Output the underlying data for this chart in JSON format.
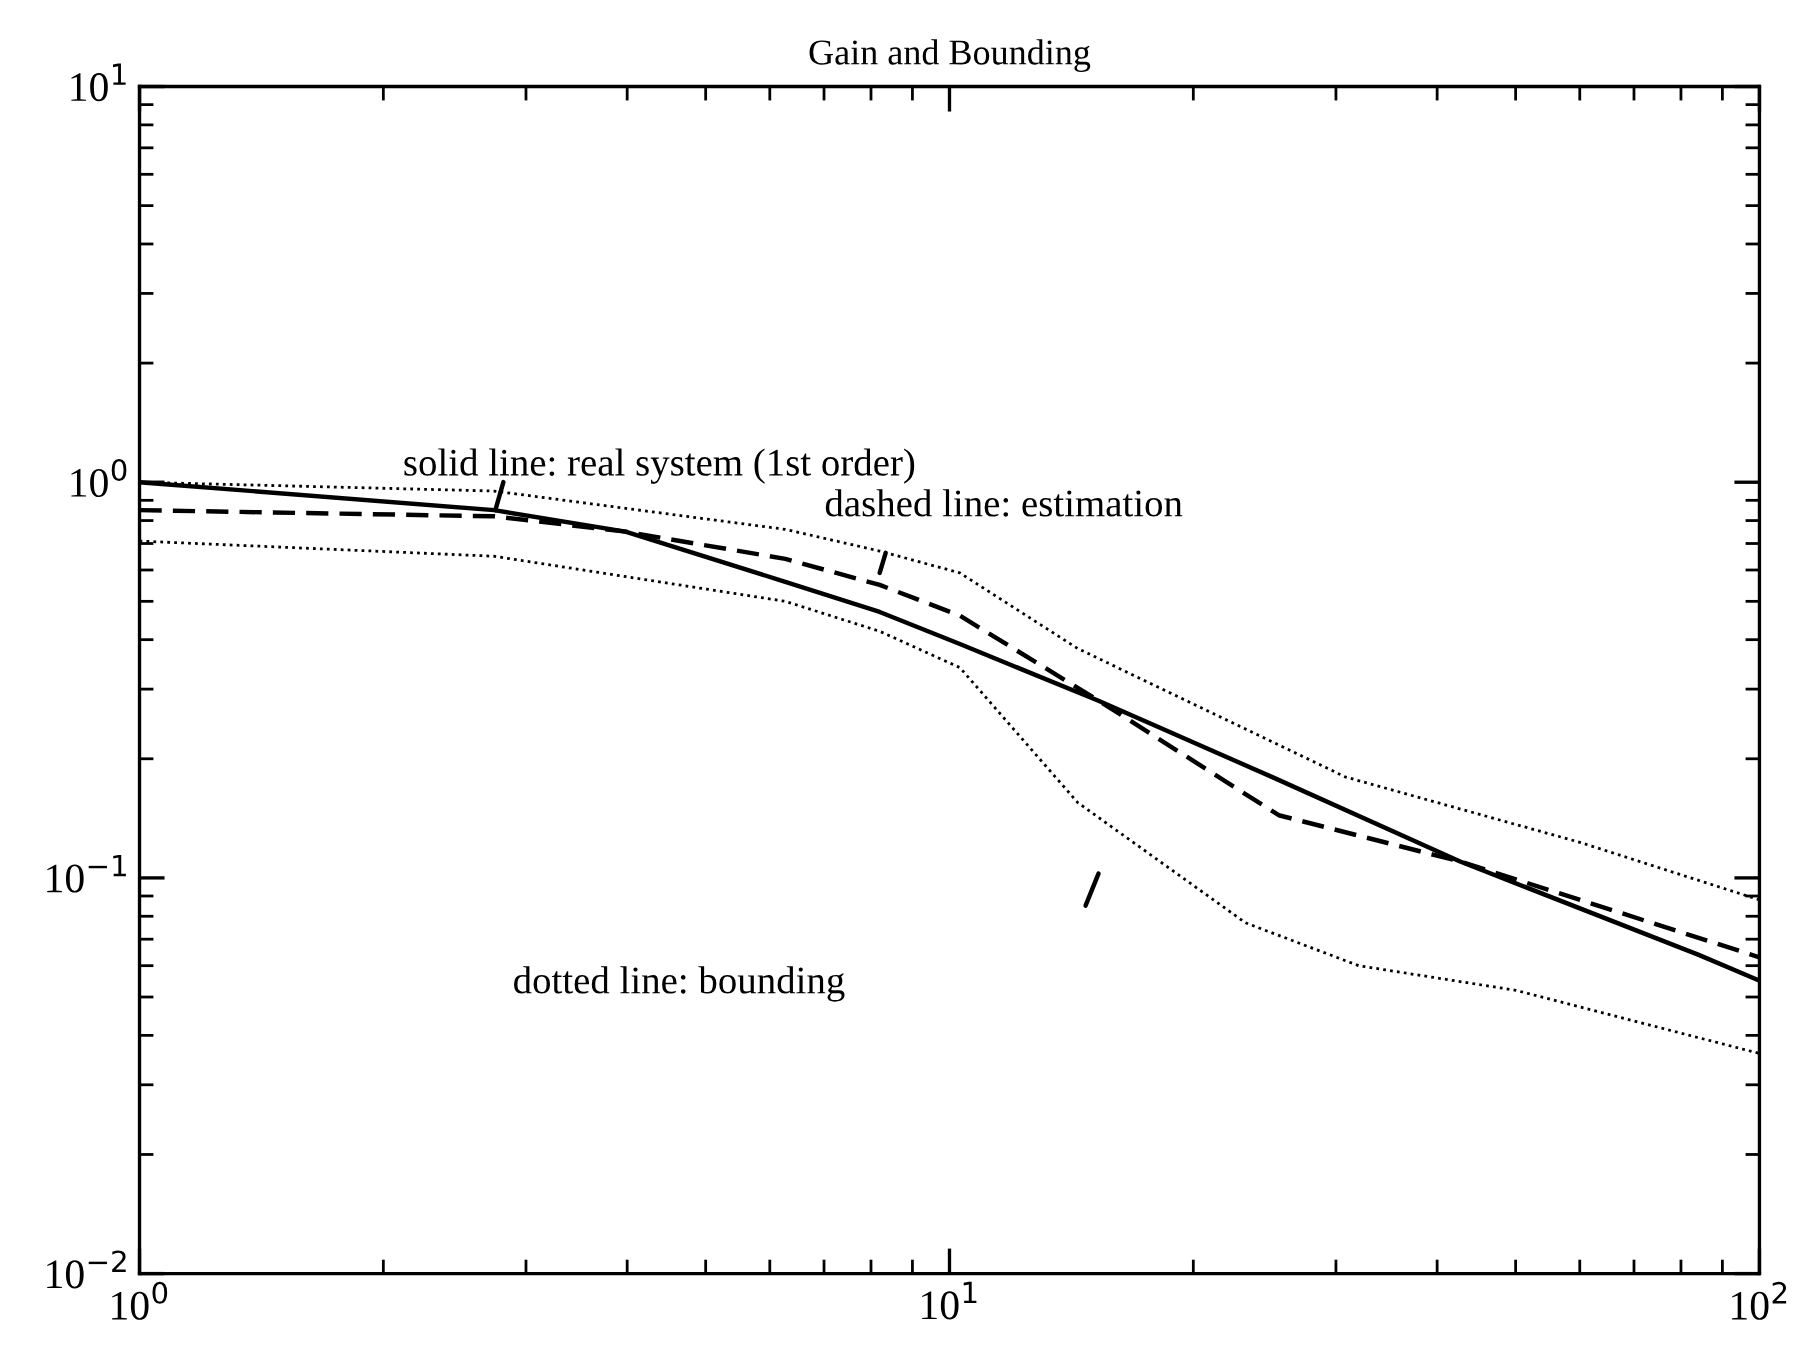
{
  "chart_data": {
    "type": "line",
    "title": "Gain and Bounding",
    "log": "xy",
    "xlim": [
      1,
      100
    ],
    "ylim": [
      0.01,
      10
    ],
    "xticks": [
      {
        "value": 1,
        "label": "10$^{0}$"
      },
      {
        "value": 10,
        "label": "10$^{1}$"
      },
      {
        "value": 100,
        "label": "10$^{2}$"
      }
    ],
    "yticks": [
      {
        "value": 0.01,
        "label": "10$^{−2}$"
      },
      {
        "value": 0.1,
        "label": "10$^{−1}$"
      },
      {
        "value": 1,
        "label": "10$^{0}$"
      },
      {
        "value": 10,
        "label": "10$^{1}$"
      }
    ],
    "grid": false,
    "legend": false,
    "series": [
      {
        "color": "#000000",
        "line_style": "solid",
        "x": [
          1,
          2.74,
          3.98,
          6.27,
          8.2,
          10.3,
          15.3,
          25,
          42.7,
          84,
          100
        ],
        "values": [
          1.0,
          0.85,
          0.75,
          0.56,
          0.47,
          0.39,
          0.28,
          0.18,
          0.11,
          0.064,
          0.055
        ]
      },
      {
        "color": "#000000",
        "line_style": "dashed",
        "x": [
          1,
          2.74,
          3.98,
          6.27,
          8.2,
          10.3,
          15.3,
          25.5,
          42.7,
          100
        ],
        "values": [
          0.85,
          0.82,
          0.75,
          0.64,
          0.55,
          0.46,
          0.28,
          0.144,
          0.11,
          0.063
        ]
      },
      {
        "color": "#000000",
        "line_style": "dotted",
        "x": [
          1,
          2.74,
          6.27,
          8.2,
          10.3,
          14.4,
          30.8,
          60,
          100
        ],
        "values": [
          1.0,
          0.95,
          0.76,
          0.67,
          0.59,
          0.38,
          0.18,
          0.123,
          0.088
        ]
      },
      {
        "color": "#000000",
        "line_style": "dotted",
        "x": [
          1,
          2.74,
          6.27,
          8.2,
          10.3,
          14.4,
          23.2,
          32,
          50,
          100
        ],
        "values": [
          0.71,
          0.65,
          0.5,
          0.42,
          0.34,
          0.155,
          0.077,
          0.06,
          0.052,
          0.036
        ]
      }
    ],
    "annotations": [
      {
        "text": "solid line: real system (1st order)",
        "x": 2.75,
        "y": 0.85
      },
      {
        "text": "dashed line: estimation",
        "x": 8.2,
        "y": 0.59
      },
      "dotted line: bounding"
    ]
  }
}
